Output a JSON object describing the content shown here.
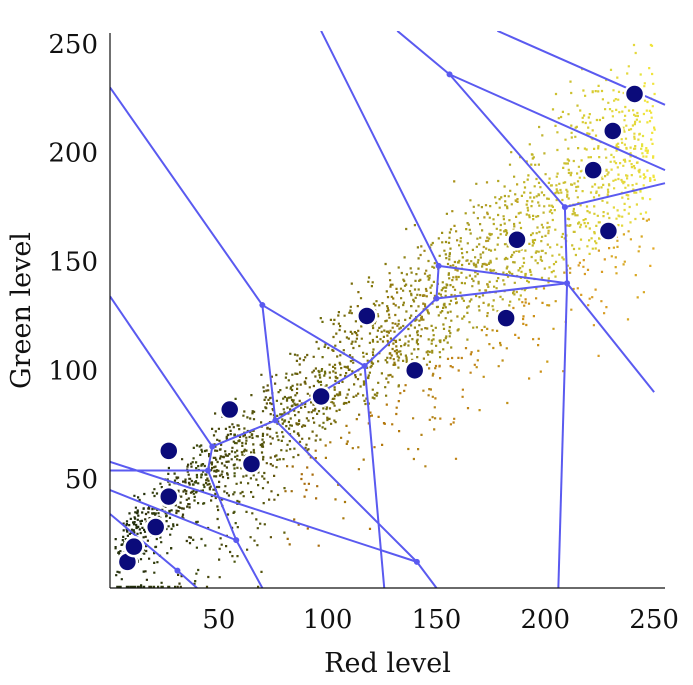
{
  "chart_data": {
    "type": "scatter",
    "xlabel": "Red level",
    "ylabel": "Green level",
    "xlim": [
      0,
      255
    ],
    "ylim": [
      0,
      255
    ],
    "x_ticks": [
      50,
      100,
      150,
      200,
      250
    ],
    "y_ticks": [
      50,
      100,
      150,
      200,
      250
    ],
    "grid": false,
    "legend": "none",
    "colors": {
      "centroid_fill": "#0b0b7a",
      "centroid_stroke": "#ffffff",
      "voronoi_edge": "#5a5af0",
      "pixel_dark": "#1c2a06",
      "pixel_mid": "#8a7a10",
      "pixel_light": "#f2e840",
      "pixel_orange": "#d27a10"
    },
    "series": [
      {
        "kind": "centroids",
        "points": [
          [
            8,
            12
          ],
          [
            11,
            19
          ],
          [
            21,
            28
          ],
          [
            27,
            42
          ],
          [
            27,
            63
          ],
          [
            55,
            82
          ],
          [
            65,
            57
          ],
          [
            97,
            88
          ],
          [
            118,
            125
          ],
          [
            140,
            100
          ],
          [
            182,
            124
          ],
          [
            187,
            160
          ],
          [
            222,
            192
          ],
          [
            229,
            164
          ],
          [
            231,
            210
          ],
          [
            241,
            227
          ]
        ]
      },
      {
        "kind": "voronoi_edges",
        "segments": [
          [
            [
              0,
              230
            ],
            [
              70,
              130
            ]
          ],
          [
            [
              70,
              130
            ],
            [
              117,
              102
            ]
          ],
          [
            [
              70,
              130
            ],
            [
              76,
              77
            ]
          ],
          [
            [
              0,
              134
            ],
            [
              47,
              65
            ]
          ],
          [
            [
              47,
              65
            ],
            [
              76,
              77
            ]
          ],
          [
            [
              47,
              65
            ],
            [
              45,
              54
            ]
          ],
          [
            [
              0,
              54
            ],
            [
              45,
              54
            ]
          ],
          [
            [
              45,
              54
            ],
            [
              58,
              22
            ]
          ],
          [
            [
              0,
              45
            ],
            [
              58,
              22
            ]
          ],
          [
            [
              58,
              22
            ],
            [
              70,
              0
            ]
          ],
          [
            [
              0,
              34
            ],
            [
              31,
              8
            ]
          ],
          [
            [
              31,
              8
            ],
            [
              40,
              0
            ]
          ],
          [
            [
              76,
              77
            ],
            [
              117,
              102
            ]
          ],
          [
            [
              76,
              77
            ],
            [
              141,
              12
            ]
          ],
          [
            [
              141,
              12
            ],
            [
              0,
              58
            ]
          ],
          [
            [
              141,
              12
            ],
            [
              150,
              0
            ]
          ],
          [
            [
              117,
              102
            ],
            [
              126,
              0
            ]
          ],
          [
            [
              117,
              102
            ],
            [
              150,
              133
            ]
          ],
          [
            [
              150,
              133
            ],
            [
              151,
              148
            ]
          ],
          [
            [
              150,
              133
            ],
            [
              210,
              140
            ]
          ],
          [
            [
              151,
              148
            ],
            [
              97,
              256
            ]
          ],
          [
            [
              151,
              148
            ],
            [
              210,
              140
            ]
          ],
          [
            [
              210,
              140
            ],
            [
              206,
              0
            ]
          ],
          [
            [
              210,
              140
            ],
            [
              250,
              90
            ]
          ],
          [
            [
              210,
              140
            ],
            [
              209,
              175
            ]
          ],
          [
            [
              209,
              175
            ],
            [
              156,
              236
            ]
          ],
          [
            [
              209,
              175
            ],
            [
              255,
              186
            ]
          ],
          [
            [
              156,
              236
            ],
            [
              132,
              256
            ]
          ],
          [
            [
              156,
              236
            ],
            [
              255,
              192
            ]
          ],
          [
            [
              178,
              256
            ],
            [
              255,
              222
            ]
          ]
        ]
      }
    ]
  }
}
